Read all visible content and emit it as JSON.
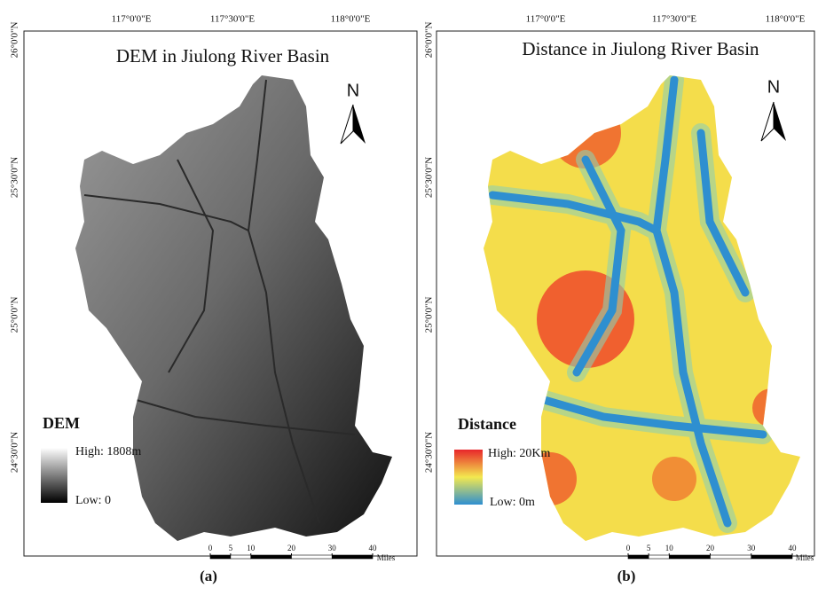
{
  "panels": [
    {
      "title": "DEM in Jiulong River Basin",
      "top_labels": [
        "117°0'0\"E",
        "117°30'0\"E",
        "118°0'0\"E"
      ],
      "left_labels": [
        "26°0'0\"N",
        "25°30'0\"N",
        "25°0'0\"N",
        "24°30'0\"N"
      ],
      "north": "N",
      "legend": {
        "title": "DEM",
        "high": "High: 1808m",
        "low": "Low: 0"
      },
      "scale": {
        "ticks": [
          0,
          5,
          10,
          20,
          30,
          40
        ],
        "unit": "Miles"
      },
      "caption": "(a)"
    },
    {
      "title": "Distance in Jiulong River Basin",
      "top_labels": [
        "117°0'0\"E",
        "117°30'0\"E",
        "118°0'0\"E"
      ],
      "left_labels": [
        "26°0'0\"N",
        "25°30'0\"N",
        "25°0'0\"N",
        "24°30'0\"N"
      ],
      "north": "N",
      "legend": {
        "title": "Distance",
        "high": "High: 20Km",
        "low": "Low: 0m"
      },
      "scale": {
        "ticks": [
          0,
          5,
          10,
          20,
          30,
          40
        ],
        "unit": "Miles"
      },
      "caption": "(b)"
    }
  ]
}
